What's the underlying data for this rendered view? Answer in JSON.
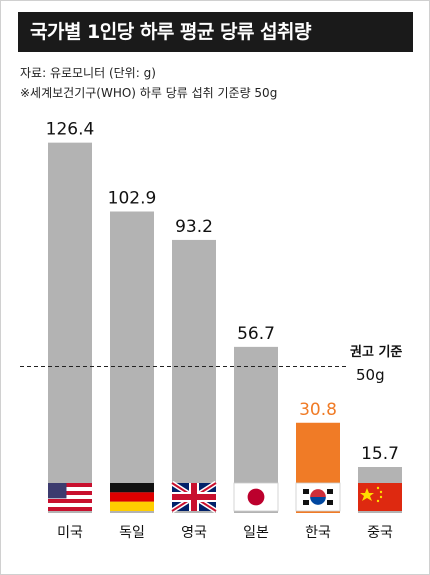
{
  "title": "국가별 1인당 하루 평균 당류 섭취량",
  "source_note": "자료: 유로모니터 (단위: g)",
  "who_note": "※세계보건기구(WHO) 하루 당류 섭취 기준량 50g",
  "colors": {
    "bar": "#b3b3b3",
    "highlight": "#f07b26",
    "title_bg": "#1a1a1a"
  },
  "chart_data": {
    "type": "bar",
    "title": "국가별 1인당 하루 평균 당류 섭취량",
    "categories": [
      "미국",
      "독일",
      "영국",
      "일본",
      "한국",
      "중국"
    ],
    "values": [
      126.4,
      102.9,
      93.2,
      56.7,
      30.8,
      15.7
    ],
    "value_labels": [
      "126.4",
      "102.9",
      "93.2",
      "56.7",
      "30.8",
      "15.7"
    ],
    "flags": [
      "us-flag-icon",
      "germany-flag-icon",
      "uk-flag-icon",
      "japan-flag-icon",
      "korea-flag-icon",
      "china-flag-icon"
    ],
    "highlight_index": 4,
    "unit": "g",
    "ylim": [
      0,
      130
    ],
    "reference_line": {
      "value": 50,
      "label_line1": "권고 기준",
      "label_line2": "50g"
    },
    "grid": false,
    "legend": "none"
  }
}
